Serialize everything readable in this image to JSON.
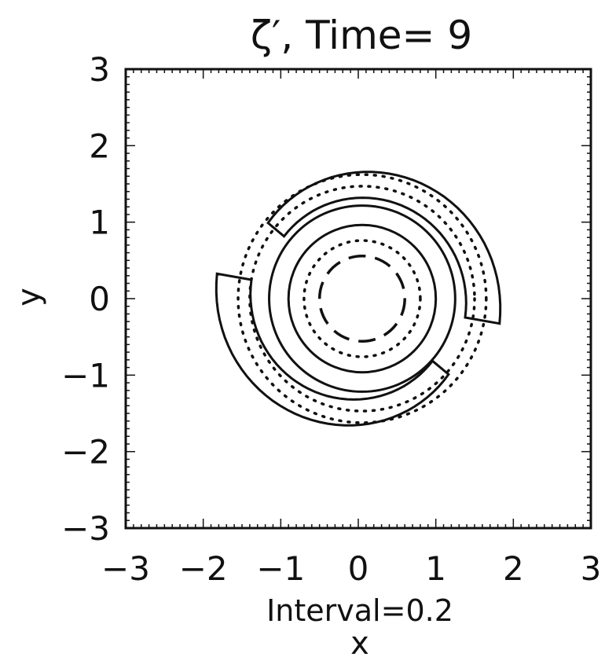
{
  "chart_data": {
    "type": "contour",
    "title": "ζ′,   Time=   9",
    "xlabel": "x",
    "ylabel": "y",
    "annotation": "Interval=0.2",
    "xlim": [
      -3,
      3
    ],
    "ylim": [
      -3,
      3
    ],
    "x_ticks": [
      "−3",
      "−2",
      "−1",
      "0",
      "1",
      "2",
      "3"
    ],
    "y_ticks": [
      "3",
      "2",
      "1",
      "0",
      "−1",
      "−2",
      "−3"
    ],
    "grid": false,
    "contour_interval": 0.2,
    "line_styles": {
      "positive": "solid",
      "negative": "dotted"
    },
    "contours": [
      {
        "name": "outer-positive-arm-1",
        "style": "solid",
        "shape": "spiral-arm",
        "center": [
          0,
          0
        ],
        "radius_range": [
          1.25,
          1.85
        ],
        "angle_range_deg": [
          -10,
          140
        ]
      },
      {
        "name": "outer-positive-arm-2",
        "style": "solid",
        "shape": "spiral-arm",
        "center": [
          0,
          0
        ],
        "radius_range": [
          1.25,
          1.85
        ],
        "angle_range_deg": [
          170,
          320
        ]
      },
      {
        "name": "ring-positive",
        "style": "solid",
        "shape": "ring",
        "center": [
          0.05,
          0
        ],
        "radius": 1.2
      },
      {
        "name": "ring-positive-inner",
        "style": "solid",
        "shape": "ring",
        "center": [
          0.05,
          0
        ],
        "radius": 0.95
      },
      {
        "name": "core-negative-dashed",
        "style": "dashed",
        "shape": "ring",
        "center": [
          0.05,
          0
        ],
        "radius": 0.55
      },
      {
        "name": "negative-band-1",
        "style": "dotted",
        "shape": "ring",
        "center": [
          0.05,
          0
        ],
        "radius": 1.45
      },
      {
        "name": "negative-band-2",
        "style": "dotted",
        "shape": "ring",
        "center": [
          0.05,
          0
        ],
        "radius": 1.6
      },
      {
        "name": "negative-band-inner",
        "style": "dotted",
        "shape": "ring",
        "center": [
          0.05,
          0
        ],
        "radius": 0.75
      }
    ]
  }
}
